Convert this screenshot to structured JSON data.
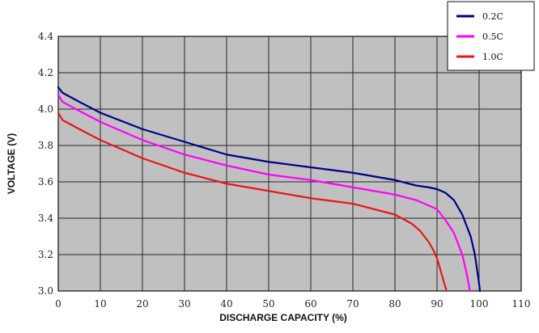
{
  "chart_data": {
    "type": "line",
    "title": "",
    "xlabel": "DISCHARGE CAPACITY (%)",
    "ylabel": "VOLTAGE (V)",
    "xlim": [
      0,
      110
    ],
    "ylim": [
      3.0,
      4.4
    ],
    "xticks": [
      0,
      10,
      20,
      30,
      40,
      50,
      60,
      70,
      80,
      90,
      100,
      110
    ],
    "yticks": [
      3.0,
      3.2,
      3.4,
      3.6,
      3.8,
      4.0,
      4.2,
      4.4
    ],
    "xtick_labels": [
      "0",
      "10",
      "20",
      "30",
      "40",
      "50",
      "60",
      "70",
      "80",
      "90",
      "100",
      "110"
    ],
    "ytick_labels": [
      "3.0",
      "3.2",
      "3.4",
      "3.6",
      "3.8",
      "4.0",
      "4.2",
      "4.4"
    ],
    "grid": true,
    "legend_position": "top-right",
    "background_color": "#c0c0c0",
    "series": [
      {
        "name": "0.2C",
        "color": "#00008b",
        "x": [
          0,
          1,
          5,
          10,
          20,
          30,
          40,
          50,
          60,
          70,
          80,
          85,
          88,
          90,
          92,
          94,
          96,
          97,
          98,
          99,
          99.5,
          100,
          100.2
        ],
        "y": [
          4.12,
          4.09,
          4.04,
          3.98,
          3.89,
          3.82,
          3.75,
          3.71,
          3.68,
          3.65,
          3.61,
          3.58,
          3.57,
          3.56,
          3.54,
          3.5,
          3.42,
          3.36,
          3.3,
          3.2,
          3.12,
          3.04,
          3.0
        ]
      },
      {
        "name": "0.5C",
        "color": "#ff00ff",
        "x": [
          0,
          1,
          5,
          10,
          20,
          30,
          40,
          50,
          60,
          70,
          80,
          85,
          88,
          90,
          92,
          94,
          95,
          96,
          96.5,
          97,
          97.5,
          97.8
        ],
        "y": [
          4.08,
          4.04,
          3.99,
          3.93,
          3.83,
          3.75,
          3.69,
          3.64,
          3.61,
          3.57,
          3.53,
          3.5,
          3.47,
          3.45,
          3.39,
          3.32,
          3.26,
          3.2,
          3.15,
          3.1,
          3.04,
          3.0
        ]
      },
      {
        "name": "1.0C",
        "color": "#e8161b",
        "x": [
          0,
          1,
          5,
          10,
          20,
          30,
          40,
          50,
          60,
          70,
          80,
          84,
          86,
          88,
          89,
          90,
          90.5,
          91,
          91.5,
          92,
          92.3
        ],
        "y": [
          3.98,
          3.94,
          3.89,
          3.83,
          3.73,
          3.65,
          3.59,
          3.55,
          3.51,
          3.48,
          3.42,
          3.37,
          3.33,
          3.27,
          3.23,
          3.18,
          3.14,
          3.1,
          3.06,
          3.02,
          3.0
        ]
      }
    ]
  }
}
